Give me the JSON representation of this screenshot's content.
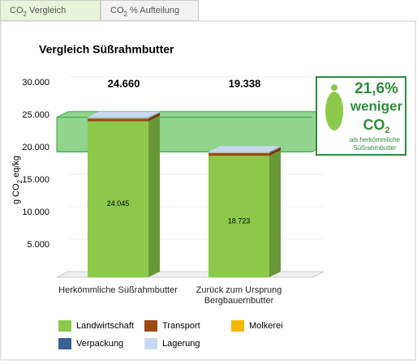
{
  "tabs": [
    {
      "prefix": "CO",
      "sub": "2",
      "suffix": " Vergleich",
      "active": true
    },
    {
      "prefix": "CO",
      "sub": "2",
      "suffix": " % Aufteilung",
      "active": false
    }
  ],
  "chart_data": {
    "type": "bar3d-stacked",
    "title": "Vergleich Süßrahmbutter",
    "y_label": {
      "prefix": "g CO",
      "sub": "2",
      "suffix": " eq/kg"
    },
    "categories": [
      "Herkömmliche Süßrahmbutter",
      "Zurück zum Ursprung Bergbauernbutter"
    ],
    "series": [
      {
        "name": "Landwirtschaft",
        "color": "#8cc94a",
        "values": [
          24045,
          18723
        ],
        "value_labels": [
          "24.045",
          "18.723"
        ]
      },
      {
        "name": "Transport",
        "color": "#9a4a12",
        "values": [
          400,
          400
        ]
      },
      {
        "name": "Molkerei",
        "color": "#f5b800",
        "values": [
          50,
          50
        ]
      },
      {
        "name": "Verpackung",
        "color": "#3a6090",
        "values": [
          50,
          50
        ]
      },
      {
        "name": "Lagerung",
        "color": "#c8d8ee",
        "values": [
          115,
          115
        ]
      }
    ],
    "totals": [
      {
        "value": 24660,
        "label": "24.660"
      },
      {
        "value": 19338,
        "label": "19.338"
      }
    ],
    "difference_band": [
      19338,
      24660
    ],
    "ylim": [
      0,
      30000
    ],
    "yticks": [
      {
        "value": 5000,
        "label": "5.000"
      },
      {
        "value": 10000,
        "label": "10.000"
      },
      {
        "value": 15000,
        "label": "15.000"
      },
      {
        "value": 20000,
        "label": "20.000"
      },
      {
        "value": 25000,
        "label": "25.000"
      },
      {
        "value": 30000,
        "label": "30.000"
      }
    ],
    "grid": true,
    "badge": {
      "percent": "21,6%",
      "line1": "weniger",
      "co_prefix": "CO",
      "co_sub": "2",
      "line3": "als herkömmliche",
      "line4": "Süßrahmbutter"
    }
  }
}
